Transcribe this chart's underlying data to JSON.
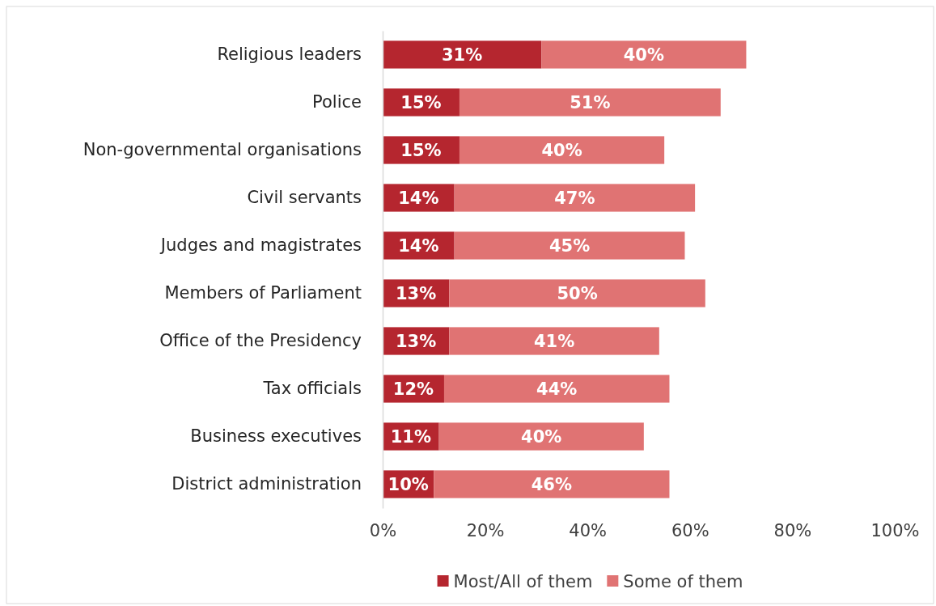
{
  "chart_data": {
    "type": "bar",
    "orientation": "horizontal",
    "stacked": true,
    "categories": [
      "Religious leaders",
      "Police",
      "Non-governmental organisations",
      "Civil servants",
      "Judges and magistrates",
      "Members of Parliament",
      "Office of the Presidency",
      "Tax officials",
      "Business executives",
      "District administration"
    ],
    "series": [
      {
        "name": "Most/All of them",
        "color": "#b5262f",
        "values": [
          31,
          15,
          15,
          14,
          14,
          13,
          13,
          12,
          11,
          10
        ],
        "value_labels": [
          "31%",
          "15%",
          "15%",
          "14%",
          "14%",
          "13%",
          "13%",
          "12%",
          "11%",
          "10%"
        ]
      },
      {
        "name": "Some of them",
        "color": "#e07373",
        "values": [
          40,
          51,
          40,
          47,
          45,
          50,
          41,
          44,
          40,
          46
        ],
        "value_labels": [
          "40%",
          "51%",
          "40%",
          "47%",
          "45%",
          "50%",
          "41%",
          "44%",
          "40%",
          "46%"
        ]
      }
    ],
    "xlim": [
      0,
      100
    ],
    "xticks": [
      {
        "value": 0,
        "label": "0%"
      },
      {
        "value": 20,
        "label": "20%"
      },
      {
        "value": 40,
        "label": "40%"
      },
      {
        "value": 60,
        "label": "60%"
      },
      {
        "value": 80,
        "label": "80%"
      },
      {
        "value": 100,
        "label": "100%"
      }
    ],
    "grid": false,
    "legend": "bottom"
  }
}
